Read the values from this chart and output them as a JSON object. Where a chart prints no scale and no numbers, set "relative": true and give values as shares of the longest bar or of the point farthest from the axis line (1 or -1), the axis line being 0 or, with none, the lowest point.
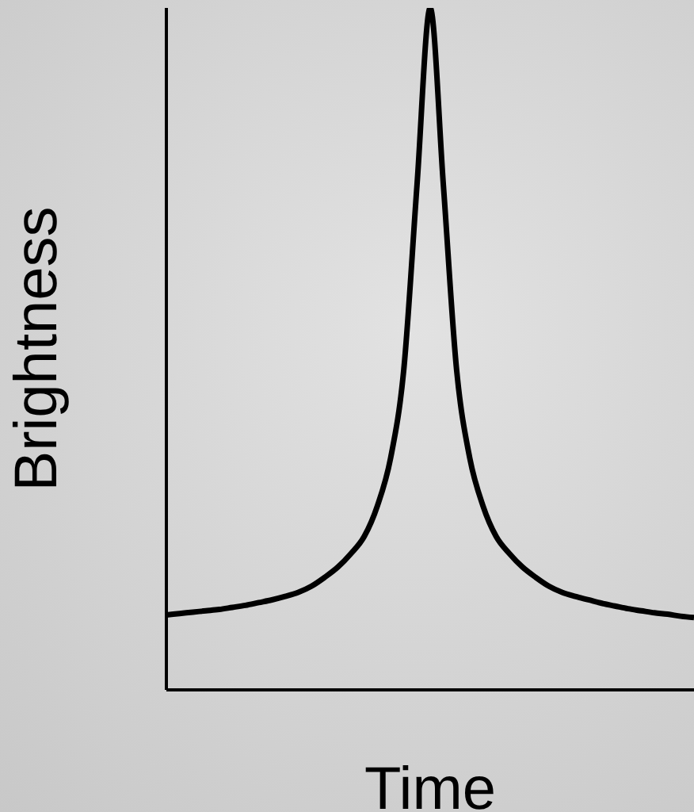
{
  "chart_data": {
    "type": "line",
    "xlabel": "Time",
    "ylabel": "Brightness",
    "relative": true,
    "grid": false,
    "legend": false,
    "marker": "none",
    "line_style": "solid",
    "categories": [
      null,
      null,
      null,
      null,
      null,
      null,
      null,
      null,
      null,
      null,
      null,
      null,
      null,
      null,
      null,
      null,
      null,
      null,
      null,
      null,
      null,
      null,
      null,
      null,
      null,
      null,
      null,
      null,
      null,
      null,
      null,
      null,
      null,
      null,
      null,
      null,
      null,
      null,
      null,
      null,
      null
    ],
    "series": [
      {
        "color": "#000000",
        "values": [
          0.11,
          0.112,
          0.114,
          0.116,
          0.118,
          0.121,
          0.124,
          0.128,
          0.132,
          0.137,
          0.143,
          0.152,
          0.165,
          0.18,
          0.2,
          0.225,
          0.27,
          0.34,
          0.47,
          0.74,
          1.0,
          0.74,
          0.47,
          0.34,
          0.27,
          0.225,
          0.2,
          0.18,
          0.165,
          0.152,
          0.143,
          0.137,
          0.132,
          0.127,
          0.123,
          0.119,
          0.116,
          0.113,
          0.111,
          0.108,
          0.106
        ]
      }
    ]
  }
}
